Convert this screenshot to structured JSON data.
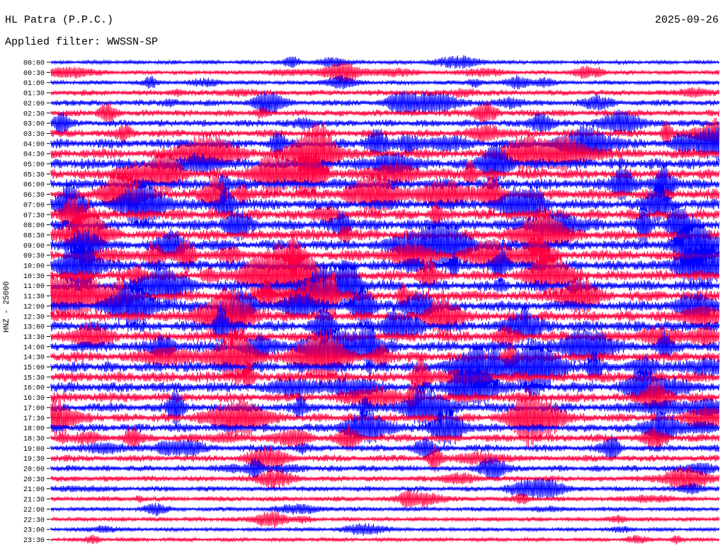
{
  "header": {
    "station": "HL Patra (P.P.C.)",
    "date": "2025-09-26",
    "filter": "Applied filter: WWSSN-SP"
  },
  "chart_data": {
    "type": "line",
    "title": "HL Patra (P.P.C.)",
    "ylabel": "HNZ - 25000",
    "row_labels": [
      "00:00",
      "00:30",
      "01:00",
      "01:30",
      "02:00",
      "02:30",
      "03:00",
      "03:30",
      "04:00",
      "04:30",
      "05:00",
      "05:30",
      "06:00",
      "06:30",
      "07:00",
      "07:30",
      "08:00",
      "08:30",
      "09:00",
      "09:30",
      "10:00",
      "10:30",
      "11:00",
      "11:30",
      "12:00",
      "12:30",
      "13:00",
      "13:30",
      "14:00",
      "14:30",
      "15:00",
      "15:30",
      "16:00",
      "16:30",
      "17:00",
      "17:30",
      "18:00",
      "18:30",
      "19:00",
      "19:30",
      "20:00",
      "20:30",
      "21:00",
      "21:30",
      "22:00",
      "22:30",
      "23:00",
      "23:30"
    ],
    "trace_colors": [
      "#0000ff",
      "#ff0040"
    ],
    "relative_activity": [
      0.25,
      0.3,
      0.3,
      0.45,
      0.5,
      0.55,
      0.6,
      0.7,
      0.85,
      0.9,
      1.0,
      1.0,
      1.0,
      1.0,
      1.0,
      1.0,
      1.0,
      1.0,
      1.0,
      1.0,
      1.0,
      1.0,
      1.0,
      1.0,
      1.0,
      1.0,
      1.0,
      1.0,
      1.0,
      1.0,
      1.0,
      1.0,
      0.95,
      0.9,
      0.85,
      0.8,
      0.75,
      0.7,
      0.6,
      0.55,
      0.5,
      0.45,
      0.4,
      0.35,
      0.3,
      0.3,
      0.25,
      0.25
    ]
  }
}
